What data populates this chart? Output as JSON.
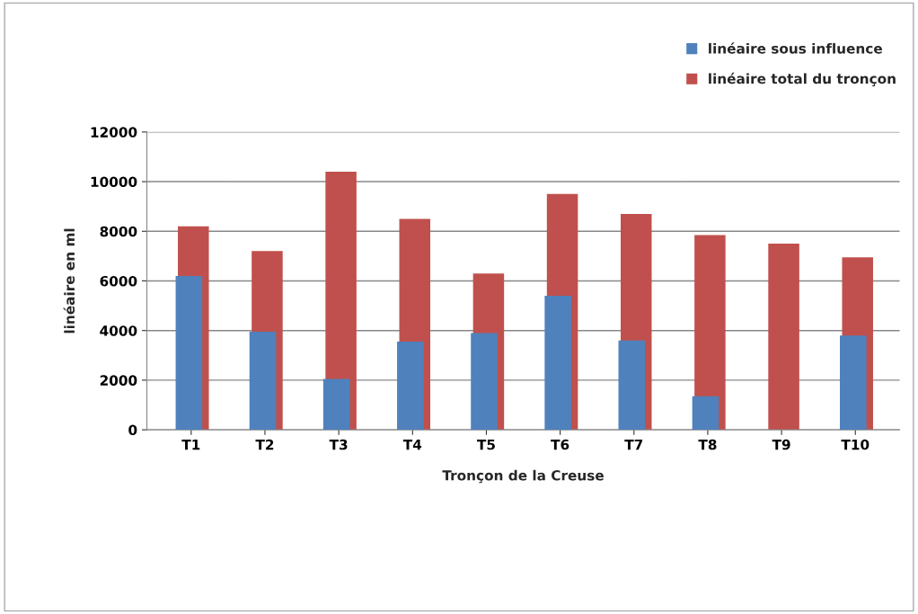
{
  "chart_data": {
    "type": "bar",
    "xlabel": "Tronçon de la Creuse",
    "ylabel": "linéaire en ml",
    "categories": [
      "T1",
      "T2",
      "T3",
      "T4",
      "T5",
      "T6",
      "T7",
      "T8",
      "T9",
      "T10"
    ],
    "series": [
      {
        "name": "linéaire total du tronçon",
        "color": "#c0504d",
        "values": [
          8200,
          7200,
          10400,
          8500,
          6300,
          9500,
          8700,
          7850,
          7500,
          6950
        ]
      },
      {
        "name": "linéaire sous influence",
        "color": "#4f81bd",
        "values": [
          6200,
          3950,
          2050,
          3550,
          3900,
          5400,
          3600,
          1350,
          null,
          3800
        ]
      }
    ],
    "ylim": [
      0,
      12000
    ],
    "yticks": [
      0,
      2000,
      4000,
      6000,
      8000,
      10000,
      12000
    ],
    "grid": "y",
    "legend": "top right"
  }
}
